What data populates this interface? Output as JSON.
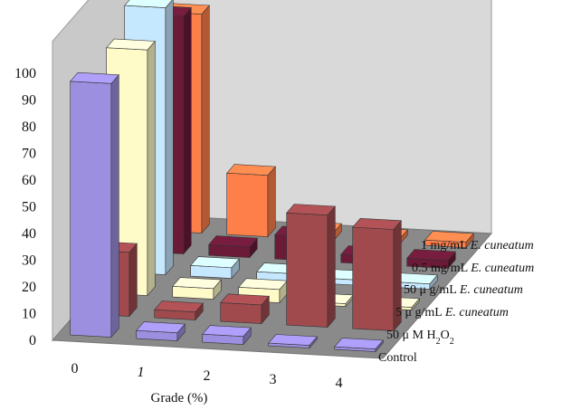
{
  "chart_data": {
    "type": "bar3d",
    "xlabel": "Grade (%)",
    "categories": [
      "0",
      "1",
      "2",
      "3",
      "4"
    ],
    "yticks": [
      "0",
      "10",
      "20",
      "30",
      "40",
      "50",
      "60",
      "70",
      "80",
      "90",
      "100"
    ],
    "ylim": [
      0,
      100
    ],
    "series": [
      {
        "name": "Control",
        "values": [
          95,
          3,
          3,
          1,
          1
        ]
      },
      {
        "name": "50 μM H₂O₂",
        "values": [
          24,
          3,
          7,
          42,
          38
        ]
      },
      {
        "name": "5 μg/mL E. cuneatum",
        "values": [
          92,
          4,
          5,
          1,
          1
        ]
      },
      {
        "name": "50 μg/mL E. cuneatum",
        "values": [
          100,
          4,
          3,
          2,
          2
        ]
      },
      {
        "name": "0.5 mg/mL E. cuneatum",
        "values": [
          89,
          4,
          9,
          3,
          3
        ]
      },
      {
        "name": "1 mg/mL E. cuneatum",
        "values": [
          82,
          23,
          3,
          2,
          2
        ]
      }
    ],
    "series_labels": [
      {
        "prefix": "1 mg/mL ",
        "italic": "E. cuneatum"
      },
      {
        "prefix": "0.5 mg/mL ",
        "italic": "E. cuneatum"
      },
      {
        "prefix": "50  μ g/mL ",
        "italic": "E. cuneatum"
      },
      {
        "prefix": "5  μ g/mL ",
        "italic": "E. cuneatum"
      },
      {
        "prefix": "50  μ M H",
        "sub": "2",
        "mid": "O",
        "sub2": "2"
      },
      {
        "prefix": "Control"
      }
    ],
    "colors": {
      "Control": "#9d8fe0",
      "50 μM H₂O₂": "#a04a4e",
      "5 μg/mL E. cuneatum": "#fffbc8",
      "50 μg/mL E. cuneatum": "#c6e8ff",
      "0.5 mg/mL E. cuneatum": "#6b1a38",
      "1 mg/mL E. cuneatum": "#ff7f4a"
    },
    "grid": false
  }
}
